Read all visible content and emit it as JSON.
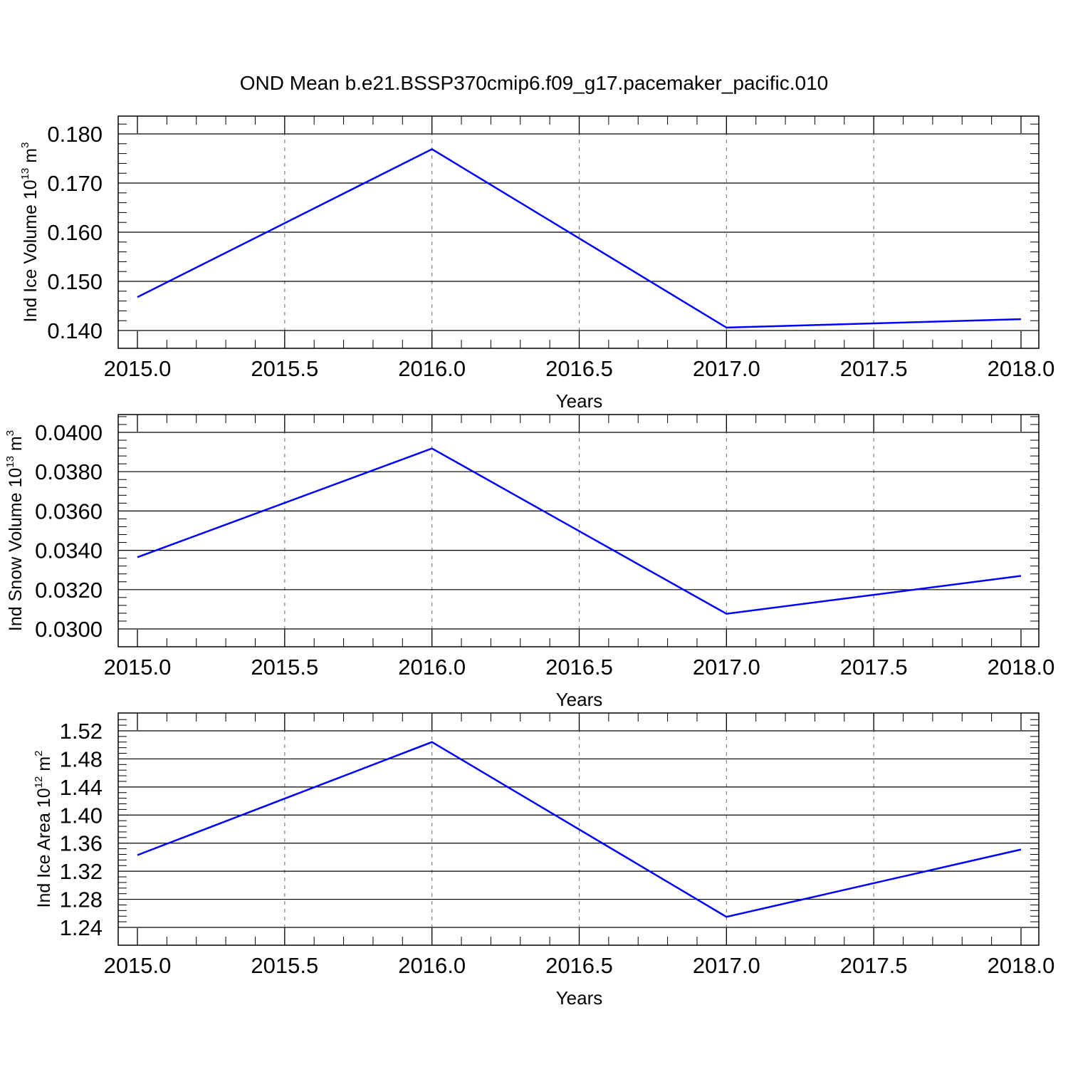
{
  "title": "OND Mean b.e21.BSSP370cmip6.f09_g17.pacemaker_pacific.010",
  "colors": {
    "series": "#0000ff",
    "axis": "#000000",
    "grid": "#808080"
  },
  "chart_data": [
    {
      "type": "line",
      "ylabel": {
        "main": "Ind Ice Volume 10",
        "sup1": "13",
        "unit": " m",
        "sup2": "3"
      },
      "xlabel": "Years",
      "xlim": [
        2015.0,
        2018.0
      ],
      "ylim": [
        0.14,
        0.18
      ],
      "x_ticks": [
        "2015.0",
        "2015.5",
        "2016.0",
        "2016.5",
        "2017.0",
        "2017.5",
        "2018.0"
      ],
      "y_ticks": [
        "0.140",
        "0.150",
        "0.160",
        "0.170",
        "0.180"
      ],
      "series": [
        {
          "x": [
            2015,
            2016,
            2017,
            2018
          ],
          "y": [
            0.1468,
            0.1769,
            0.1406,
            0.1423
          ]
        }
      ]
    },
    {
      "type": "line",
      "ylabel": {
        "main": "Ind Snow Volume 10",
        "sup1": "13",
        "unit": " m",
        "sup2": "3"
      },
      "xlabel": "Years",
      "xlim": [
        2015.0,
        2018.0
      ],
      "ylim": [
        0.03,
        0.04
      ],
      "x_ticks": [
        "2015.0",
        "2015.5",
        "2016.0",
        "2016.5",
        "2017.0",
        "2017.5",
        "2018.0"
      ],
      "y_ticks": [
        "0.0300",
        "0.0320",
        "0.0340",
        "0.0360",
        "0.0380",
        "0.0400"
      ],
      "series": [
        {
          "x": [
            2015,
            2016,
            2017,
            2018
          ],
          "y": [
            0.03365,
            0.03918,
            0.03077,
            0.0327
          ]
        }
      ]
    },
    {
      "type": "line",
      "ylabel": {
        "main": "Ind Ice Area 10",
        "sup1": "12",
        "unit": " m",
        "sup2": "2"
      },
      "xlabel": "Years",
      "xlim": [
        2015.0,
        2018.0
      ],
      "ylim": [
        1.24,
        1.52
      ],
      "x_ticks": [
        "2015.0",
        "2015.5",
        "2016.0",
        "2016.5",
        "2017.0",
        "2017.5",
        "2018.0"
      ],
      "y_ticks": [
        "1.24",
        "1.28",
        "1.32",
        "1.36",
        "1.40",
        "1.44",
        "1.48",
        "1.52"
      ],
      "series": [
        {
          "x": [
            2015,
            2016,
            2017,
            2018
          ],
          "y": [
            1.343,
            1.504,
            1.255,
            1.351
          ]
        }
      ]
    }
  ]
}
